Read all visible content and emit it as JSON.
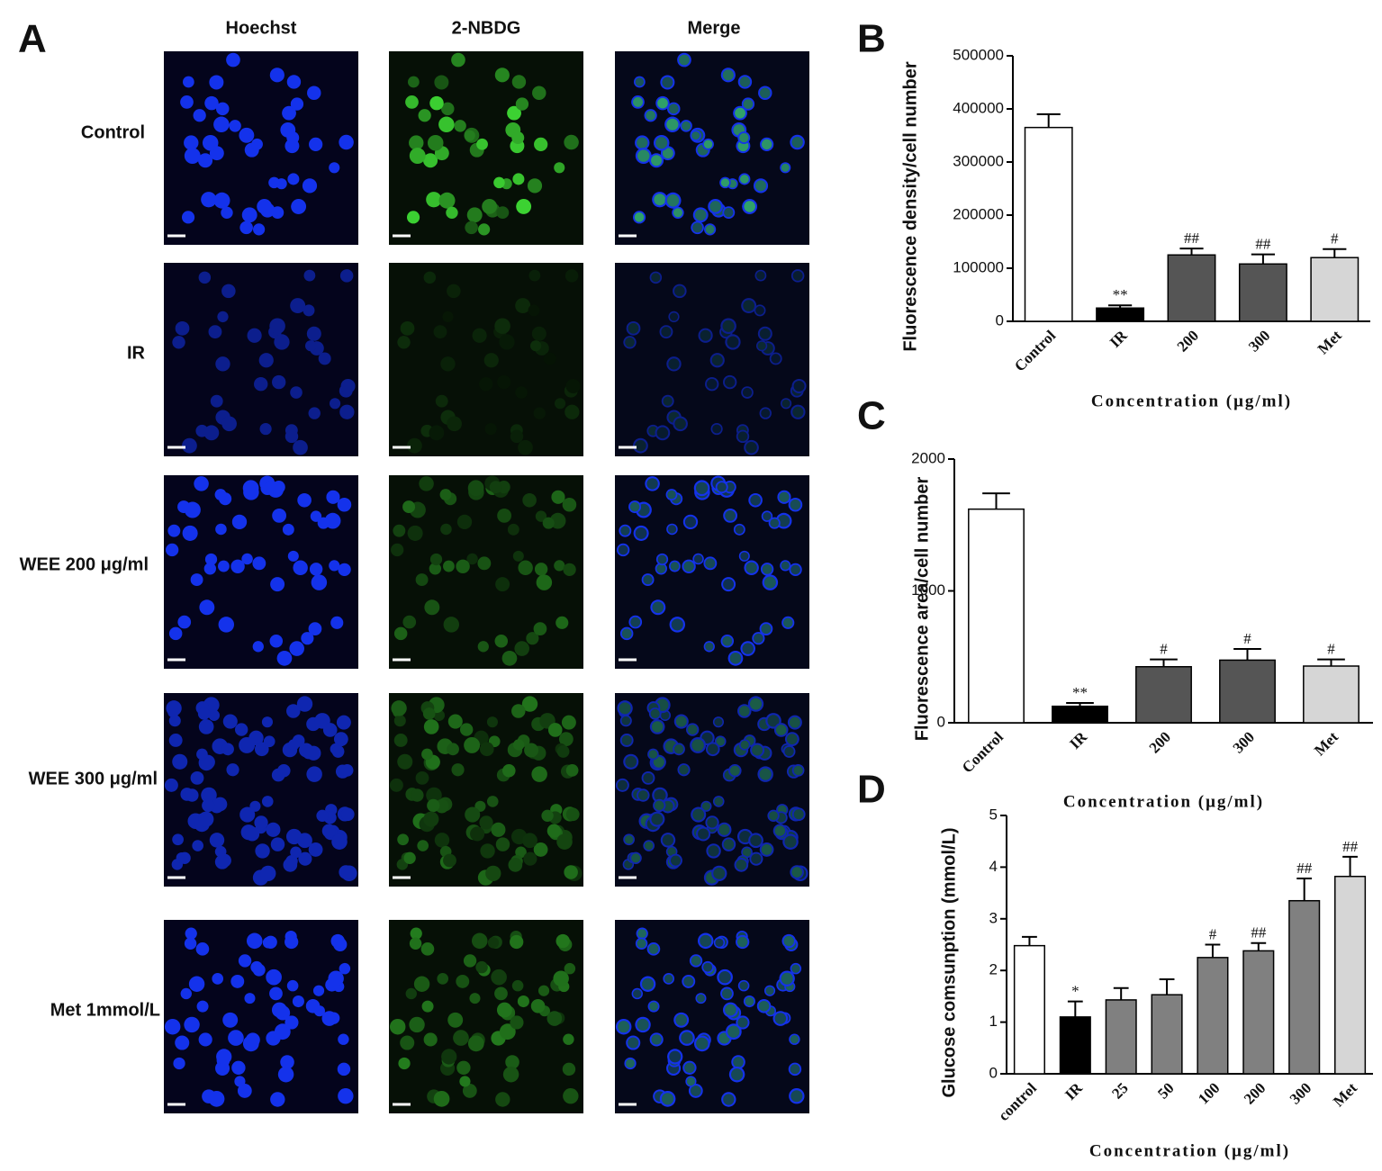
{
  "panel_a": {
    "label": "A",
    "columns": [
      "Hoechst",
      "2-NBDG",
      "Merge"
    ],
    "rows": [
      "Control",
      "IR",
      "WEE 200 μg/ml",
      "WEE 300 μg/ml",
      "Met 1mmol/L"
    ]
  },
  "chart_data": [
    {
      "type": "bar",
      "label": "B",
      "y_label": "Fluorescence density/cell number",
      "x_label": "Concentration (μg/ml)",
      "categories": [
        "Control",
        "IR",
        "200",
        "300",
        "Met"
      ],
      "values": [
        365000,
        25000,
        125000,
        108000,
        120000
      ],
      "errors": [
        25000,
        5000,
        12000,
        18000,
        16000
      ],
      "annotations": [
        null,
        "**",
        "##",
        "##",
        "#"
      ],
      "colors": [
        "#ffffff",
        "#000000",
        "#555555",
        "#555555",
        "#d6d6d6"
      ],
      "ylim": [
        0,
        500000
      ],
      "yticks": [
        0,
        100000,
        200000,
        300000,
        400000,
        500000
      ]
    },
    {
      "type": "bar",
      "label": "C",
      "y_label": "Fluorescence area/cell number",
      "x_label": "Concentration (μg/ml)",
      "categories": [
        "Control",
        "IR",
        "200",
        "300",
        "Met"
      ],
      "values": [
        1620,
        125,
        425,
        475,
        430
      ],
      "errors": [
        120,
        25,
        55,
        85,
        50
      ],
      "annotations": [
        null,
        "**",
        "#",
        "#",
        "#"
      ],
      "colors": [
        "#ffffff",
        "#000000",
        "#555555",
        "#555555",
        "#d6d6d6"
      ],
      "ylim": [
        0,
        2000
      ],
      "yticks": [
        0,
        1000,
        2000
      ]
    },
    {
      "type": "bar",
      "label": "D",
      "y_label": "Glucose comsunption (mmol/L)",
      "x_label": "Concentration (μg/ml)",
      "categories": [
        "control",
        "IR",
        "25",
        "50",
        "100",
        "200",
        "300",
        "Met"
      ],
      "values": [
        2.48,
        1.1,
        1.43,
        1.53,
        2.25,
        2.38,
        3.35,
        3.82
      ],
      "errors": [
        0.17,
        0.3,
        0.23,
        0.3,
        0.25,
        0.15,
        0.43,
        0.38
      ],
      "annotations": [
        null,
        "*",
        null,
        null,
        "#",
        "##",
        "##",
        "##"
      ],
      "colors": [
        "#ffffff",
        "#000000",
        "#808080",
        "#808080",
        "#808080",
        "#808080",
        "#808080",
        "#d6d6d6"
      ],
      "ylim": [
        0,
        5
      ],
      "yticks": [
        0,
        1,
        2,
        3,
        4,
        5
      ]
    }
  ]
}
